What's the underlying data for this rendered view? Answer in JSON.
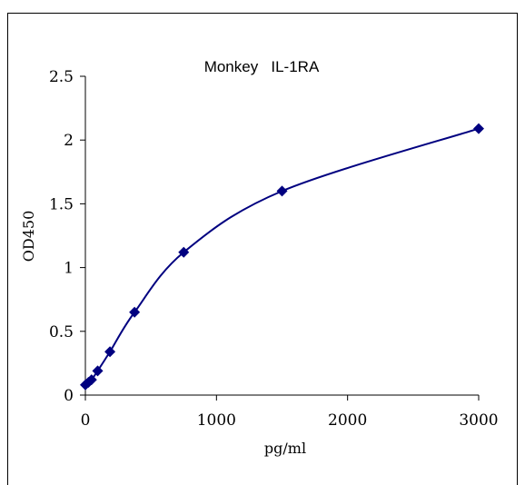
{
  "chart_data": {
    "type": "scatter",
    "title": "Monkey   IL-1RA",
    "xlabel": "pg/ml",
    "ylabel": "OD450",
    "xlim": [
      0,
      3000
    ],
    "ylim": [
      0,
      2.5
    ],
    "x_ticks": [
      "0",
      "1000",
      "2000",
      "3000"
    ],
    "y_ticks": [
      "0",
      "0.5",
      "1",
      "1.5",
      "2",
      "2.5"
    ],
    "grid": false,
    "legend": "none",
    "series": [
      {
        "x": [
          0,
          23.4,
          46.9,
          93.8,
          187.5,
          375,
          750,
          1500,
          3000
        ],
        "y": [
          0.08,
          0.1,
          0.12,
          0.19,
          0.34,
          0.65,
          1.12,
          1.6,
          2.09
        ],
        "marker": "diamond",
        "color": "#000080",
        "fit": "smooth"
      }
    ]
  }
}
